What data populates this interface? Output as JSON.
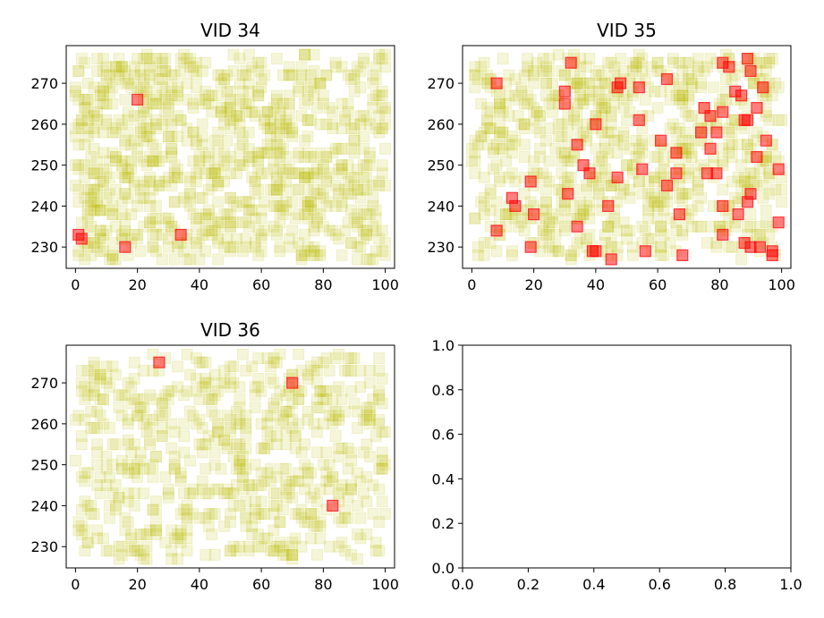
{
  "chart_data": [
    {
      "type": "scatter",
      "title": "VID 34",
      "xlim": [
        -3,
        103
      ],
      "ylim": [
        224.8,
        279.2
      ],
      "xticks": [
        0,
        20,
        40,
        60,
        80,
        100
      ],
      "yticks": [
        230,
        240,
        250,
        260,
        270
      ],
      "xlabel": "",
      "ylabel": "",
      "grid": false,
      "marker": "square",
      "background_series": {
        "color": "#bfbf00",
        "alpha": 0.15,
        "x_range": [
          0,
          100
        ],
        "y_range": [
          227,
          277
        ],
        "approx_count": 900
      },
      "highlight_series": {
        "color": "#ff0000",
        "alpha": 0.5,
        "points": [
          [
            20,
            266
          ],
          [
            1,
            233
          ],
          [
            2,
            232
          ],
          [
            16,
            230
          ],
          [
            34,
            233
          ]
        ]
      }
    },
    {
      "type": "scatter",
      "title": "VID 35",
      "xlim": [
        -3,
        103
      ],
      "ylim": [
        224.8,
        279.2
      ],
      "xticks": [
        0,
        20,
        40,
        60,
        80,
        100
      ],
      "yticks": [
        230,
        240,
        250,
        260,
        270
      ],
      "xlabel": "",
      "ylabel": "",
      "grid": false,
      "marker": "square",
      "background_series": {
        "color": "#bfbf00",
        "alpha": 0.15,
        "x_range": [
          0,
          100
        ],
        "y_range": [
          227,
          277
        ],
        "approx_count": 750
      },
      "highlight_series": {
        "color": "#ff0000",
        "alpha": 0.5,
        "points": [
          [
            32,
            275
          ],
          [
            81,
            275
          ],
          [
            83,
            274
          ],
          [
            89,
            276
          ],
          [
            90,
            273
          ],
          [
            8,
            270
          ],
          [
            47,
            269
          ],
          [
            48,
            270
          ],
          [
            54,
            269
          ],
          [
            63,
            271
          ],
          [
            30,
            268
          ],
          [
            30,
            265
          ],
          [
            85,
            268
          ],
          [
            87,
            267
          ],
          [
            94,
            269
          ],
          [
            75,
            264
          ],
          [
            77,
            262
          ],
          [
            81,
            263
          ],
          [
            92,
            264
          ],
          [
            54,
            261
          ],
          [
            88,
            261
          ],
          [
            89,
            261
          ],
          [
            40,
            260
          ],
          [
            79,
            258
          ],
          [
            74,
            258
          ],
          [
            34,
            255
          ],
          [
            61,
            256
          ],
          [
            95,
            256
          ],
          [
            66,
            253
          ],
          [
            77,
            254
          ],
          [
            92,
            252
          ],
          [
            36,
            250
          ],
          [
            38,
            248
          ],
          [
            55,
            249
          ],
          [
            66,
            248
          ],
          [
            76,
            248
          ],
          [
            79,
            248
          ],
          [
            99,
            249
          ],
          [
            19,
            246
          ],
          [
            47,
            247
          ],
          [
            63,
            245
          ],
          [
            31,
            243
          ],
          [
            90,
            243
          ],
          [
            13,
            242
          ],
          [
            14,
            240
          ],
          [
            44,
            240
          ],
          [
            81,
            240
          ],
          [
            89,
            241
          ],
          [
            20,
            238
          ],
          [
            67,
            238
          ],
          [
            86,
            238
          ],
          [
            34,
            235
          ],
          [
            99,
            236
          ],
          [
            8,
            234
          ],
          [
            81,
            233
          ],
          [
            19,
            230
          ],
          [
            39,
            229
          ],
          [
            40,
            229
          ],
          [
            56,
            229
          ],
          [
            88,
            231
          ],
          [
            90,
            230
          ],
          [
            93,
            230
          ],
          [
            97,
            229
          ],
          [
            97,
            228
          ],
          [
            45,
            227
          ],
          [
            68,
            228
          ]
        ]
      }
    },
    {
      "type": "scatter",
      "title": "VID 36",
      "xlim": [
        -3,
        103
      ],
      "ylim": [
        224.8,
        279.2
      ],
      "xticks": [
        0,
        20,
        40,
        60,
        80,
        100
      ],
      "yticks": [
        230,
        240,
        250,
        260,
        270
      ],
      "xlabel": "",
      "ylabel": "",
      "grid": false,
      "marker": "square",
      "background_series": {
        "color": "#bfbf00",
        "alpha": 0.15,
        "x_range": [
          0,
          100
        ],
        "y_range": [
          227,
          277
        ],
        "approx_count": 650
      },
      "highlight_series": {
        "color": "#ff0000",
        "alpha": 0.5,
        "points": [
          [
            27,
            275
          ],
          [
            70,
            270
          ],
          [
            83,
            240
          ]
        ]
      }
    },
    {
      "type": "scatter",
      "title": "",
      "xlim": [
        0,
        1
      ],
      "ylim": [
        0,
        1
      ],
      "xticks": [
        0.0,
        0.2,
        0.4,
        0.6,
        0.8,
        1.0
      ],
      "yticks": [
        0.0,
        0.2,
        0.4,
        0.6,
        0.8,
        1.0
      ],
      "xticklabels": [
        "0.0",
        "0.2",
        "0.4",
        "0.6",
        "0.8",
        "1.0"
      ],
      "yticklabels": [
        "0.0",
        "0.2",
        "0.4",
        "0.6",
        "0.8",
        "1.0"
      ],
      "xlabel": "",
      "ylabel": "",
      "grid": false
    }
  ]
}
